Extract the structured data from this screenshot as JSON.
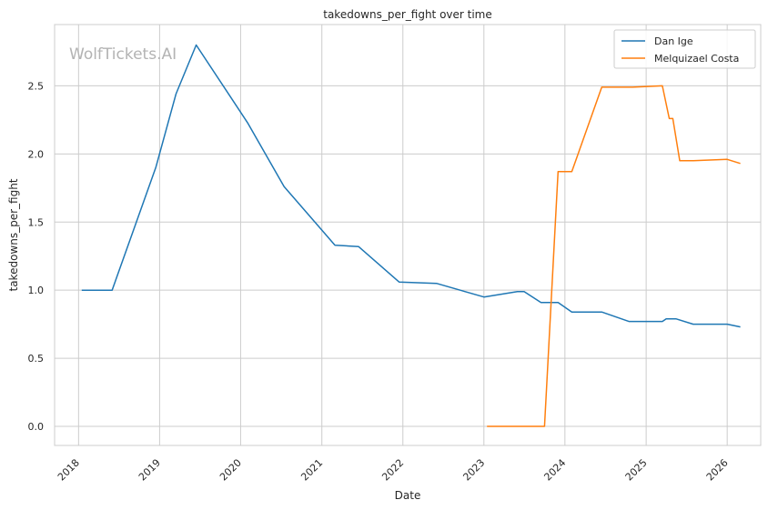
{
  "watermark": "WolfTickets.AI",
  "chart_data": {
    "type": "line",
    "title": "takedowns_per_fight over time",
    "xlabel": "Date",
    "ylabel": "takedowns_per_fight",
    "x_axis_type": "date",
    "xlim": [
      "2017-09-15",
      "2026-06-01"
    ],
    "ylim": [
      -0.14,
      2.95
    ],
    "x_ticks": [
      "2018",
      "2019",
      "2020",
      "2021",
      "2022",
      "2023",
      "2024",
      "2025",
      "2026"
    ],
    "y_ticks": [
      "0.0",
      "0.5",
      "1.0",
      "1.5",
      "2.0",
      "2.5"
    ],
    "grid": true,
    "legend_position": "top-right",
    "series": [
      {
        "name": "Dan Ige",
        "color": "#1f77b4",
        "points": [
          {
            "x": "2018-01-15",
            "y": 1.0
          },
          {
            "x": "2018-06-01",
            "y": 1.0
          },
          {
            "x": "2018-12-15",
            "y": 1.9
          },
          {
            "x": "2019-03-16",
            "y": 2.44
          },
          {
            "x": "2019-06-15",
            "y": 2.8
          },
          {
            "x": "2020-02-01",
            "y": 2.23
          },
          {
            "x": "2020-07-15",
            "y": 1.76
          },
          {
            "x": "2021-03-01",
            "y": 1.33
          },
          {
            "x": "2021-06-15",
            "y": 1.32
          },
          {
            "x": "2021-12-15",
            "y": 1.06
          },
          {
            "x": "2022-06-01",
            "y": 1.05
          },
          {
            "x": "2023-01-01",
            "y": 0.95
          },
          {
            "x": "2023-06-01",
            "y": 0.99
          },
          {
            "x": "2023-07-01",
            "y": 0.99
          },
          {
            "x": "2023-09-15",
            "y": 0.91
          },
          {
            "x": "2023-12-01",
            "y": 0.91
          },
          {
            "x": "2024-02-01",
            "y": 0.84
          },
          {
            "x": "2024-06-15",
            "y": 0.84
          },
          {
            "x": "2024-10-15",
            "y": 0.77
          },
          {
            "x": "2025-03-15",
            "y": 0.77
          },
          {
            "x": "2025-04-01",
            "y": 0.79
          },
          {
            "x": "2025-05-15",
            "y": 0.79
          },
          {
            "x": "2025-08-01",
            "y": 0.75
          },
          {
            "x": "2026-01-01",
            "y": 0.75
          },
          {
            "x": "2026-03-01",
            "y": 0.73
          }
        ]
      },
      {
        "name": "Melquizael Costa",
        "color": "#ff7f0e",
        "points": [
          {
            "x": "2023-01-15",
            "y": 0.0
          },
          {
            "x": "2023-10-01",
            "y": 0.0
          },
          {
            "x": "2023-12-01",
            "y": 1.87
          },
          {
            "x": "2024-02-01",
            "y": 1.87
          },
          {
            "x": "2024-06-15",
            "y": 2.49
          },
          {
            "x": "2024-11-01",
            "y": 2.49
          },
          {
            "x": "2025-03-15",
            "y": 2.5
          },
          {
            "x": "2025-04-15",
            "y": 2.26
          },
          {
            "x": "2025-05-01",
            "y": 2.26
          },
          {
            "x": "2025-06-01",
            "y": 1.95
          },
          {
            "x": "2025-08-01",
            "y": 1.95
          },
          {
            "x": "2026-01-01",
            "y": 1.96
          },
          {
            "x": "2026-03-01",
            "y": 1.93
          }
        ]
      }
    ]
  }
}
